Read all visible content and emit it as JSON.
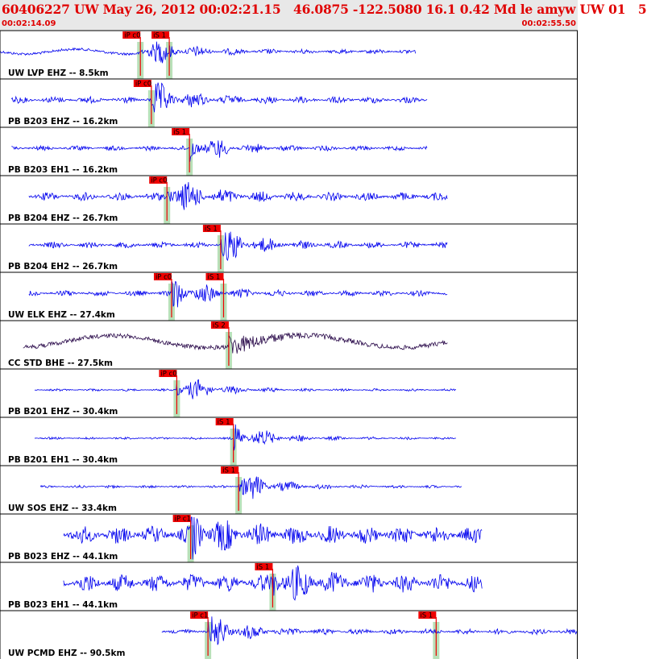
{
  "header": {
    "title": "60406227 UW May 26, 2012 00:02:21.15   46.0875 -122.5080 16.1 0.42 Md le amyw UW 01   5",
    "start_time": "00:02:14.09",
    "end_time": "00:02:55.50"
  },
  "colors": {
    "trace": "#0000ee",
    "trace_alt": "#2a0a4a",
    "pick_box": "#ee0000",
    "pick_window": "#b8e0b8",
    "text": "#000000",
    "title": "#e00000"
  },
  "chart_data": {
    "type": "line",
    "x_range": [
      "00:02:14.09",
      "00:02:55.50"
    ],
    "traces": [
      {
        "label": "UW LVP EHZ -- 8.5km",
        "start": 0.0,
        "end": 0.72,
        "amp": 0.1,
        "color": "blue",
        "picks": [
          {
            "label": "iP c0",
            "t": 0.243
          },
          {
            "label": "iS 1",
            "t": 0.293
          }
        ],
        "arrival": 0.243,
        "shaking": 0.04
      },
      {
        "label": "PB B203 EHZ -- 16.2km",
        "start": 0.02,
        "end": 0.74,
        "amp": 0.14,
        "color": "blue",
        "picks": [
          {
            "label": "iP c0",
            "t": 0.262
          }
        ],
        "arrival": 0.262,
        "shaking": 0.09
      },
      {
        "label": "PB B203 EH1 -- 16.2km",
        "start": 0.02,
        "end": 0.74,
        "amp": 0.1,
        "color": "blue",
        "picks": [
          {
            "label": "iS 1",
            "t": 0.328
          }
        ],
        "arrival": 0.328,
        "shaking": 0.09
      },
      {
        "label": "PB B204 EHZ -- 26.7km",
        "start": 0.05,
        "end": 0.775,
        "amp": 0.18,
        "color": "blue",
        "picks": [
          {
            "label": "iP c0",
            "t": 0.289
          }
        ],
        "arrival": 0.289,
        "shaking": 0.14
      },
      {
        "label": "PB B204 EH2 -- 26.7km",
        "start": 0.05,
        "end": 0.775,
        "amp": 0.13,
        "color": "blue",
        "picks": [
          {
            "label": "iS 1",
            "t": 0.382
          }
        ],
        "arrival": 0.382,
        "shaking": 0.06
      },
      {
        "label": "UW ELK EHZ -- 27.4km",
        "start": 0.05,
        "end": 0.775,
        "amp": 0.12,
        "color": "blue",
        "picks": [
          {
            "label": "iP c0",
            "t": 0.297
          },
          {
            "label": "iS 1",
            "t": 0.387
          }
        ],
        "arrival": 0.297,
        "shaking": 0.06
      },
      {
        "label": "CC STD BHE -- 27.5km",
        "start": 0.04,
        "end": 0.775,
        "amp": 0.2,
        "color": "purple",
        "picks": [
          {
            "label": "iS 2",
            "t": 0.396
          }
        ],
        "arrival": 0.396,
        "shaking": 0.13
      },
      {
        "label": "PB B201 EHZ -- 30.4km",
        "start": 0.06,
        "end": 0.79,
        "amp": 0.05,
        "color": "blue",
        "picks": [
          {
            "label": "iP c0",
            "t": 0.306
          }
        ],
        "arrival": 0.306,
        "shaking": 0.04
      },
      {
        "label": "PB B201 EH1 -- 30.4km",
        "start": 0.06,
        "end": 0.79,
        "amp": 0.05,
        "color": "blue",
        "picks": [
          {
            "label": "iS 1",
            "t": 0.404
          }
        ],
        "arrival": 0.404,
        "shaking": 0.04
      },
      {
        "label": "UW SOS EHZ -- 33.4km",
        "start": 0.07,
        "end": 0.8,
        "amp": 0.06,
        "color": "blue",
        "picks": [
          {
            "label": "iS 1",
            "t": 0.413
          }
        ],
        "arrival": 0.413,
        "shaking": 0.06
      },
      {
        "label": "PB B023 EHZ -- 44.1km",
        "start": 0.11,
        "end": 0.835,
        "amp": 0.38,
        "color": "blue",
        "picks": [
          {
            "label": "iP c1",
            "t": 0.33
          }
        ],
        "arrival": 0.33,
        "shaking": 0.32
      },
      {
        "label": "PB B023 EH1 -- 44.1km",
        "start": 0.11,
        "end": 0.835,
        "amp": 0.38,
        "color": "blue",
        "picks": [
          {
            "label": "iS 1",
            "t": 0.472
          }
        ],
        "arrival": 0.472,
        "shaking": 0.32
      },
      {
        "label": "UW PCMD EHZ -- 90.5km",
        "start": 0.28,
        "end": 1.0,
        "amp": 0.12,
        "color": "blue",
        "picks": [
          {
            "label": "iP c1",
            "t": 0.36
          },
          {
            "label": "iS 1",
            "t": 0.755
          }
        ],
        "arrival": 0.36,
        "shaking": 0.09
      }
    ]
  }
}
